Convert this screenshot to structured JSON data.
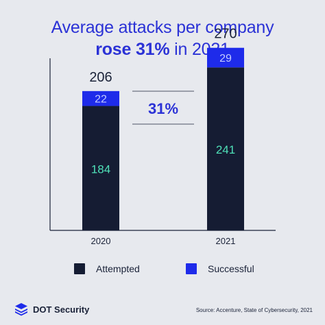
{
  "title": {
    "line1": "Average attacks per company",
    "line2_strong": "rose 31%",
    "line2_rest": " in 2021"
  },
  "chart_data": {
    "type": "bar",
    "stacked": true,
    "title": "Average attacks per company rose 31% in 2021",
    "categories": [
      "2020",
      "2021"
    ],
    "series": [
      {
        "name": "Attempted",
        "values": [
          184,
          241
        ],
        "color": "#151c33",
        "label_color": "#4fe0b8"
      },
      {
        "name": "Successful",
        "values": [
          22,
          29
        ],
        "color": "#1e2bea",
        "label_color": "#c4ccff"
      }
    ],
    "totals": [
      206,
      270
    ],
    "change_label": "31%",
    "ylim": [
      0,
      290
    ],
    "grid": false,
    "legend": "bottom"
  },
  "legend": {
    "attempted_label": "Attempted",
    "attempted_color": "#151c33",
    "successful_label": "Successful",
    "successful_color": "#1e2bea"
  },
  "brand": {
    "logo_text": "DOT Security",
    "logo_icon": "stacked-layers-icon"
  },
  "source": "Source: Accenture, State of Cybersecurity, 2021",
  "colors": {
    "background": "#e7e9ee",
    "accent": "#2b32d6",
    "dark": "#151c33"
  }
}
